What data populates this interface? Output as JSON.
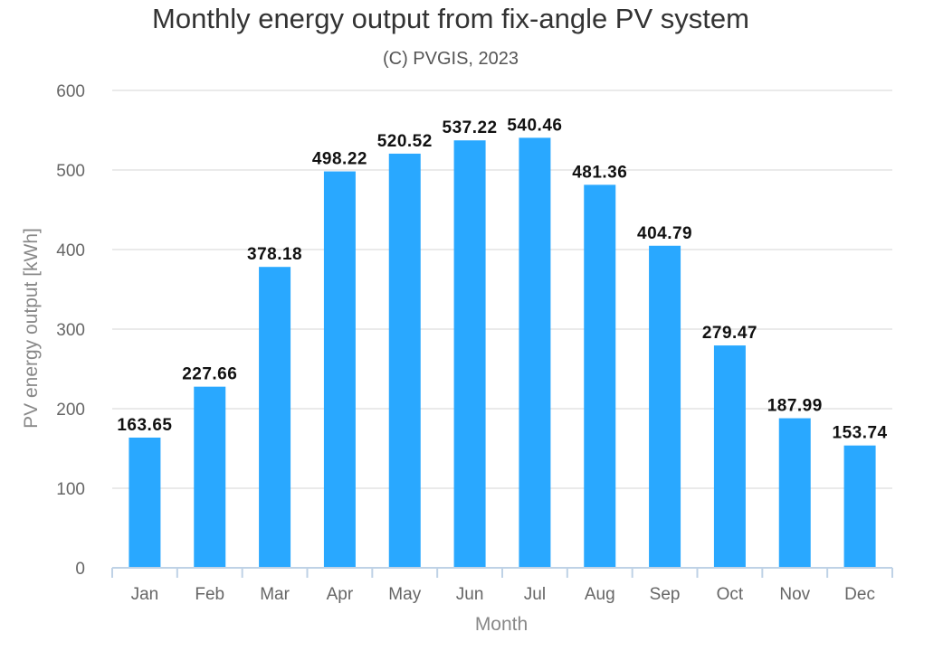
{
  "chart_data": {
    "type": "bar",
    "title": "Monthly energy output from fix-angle PV system",
    "subtitle": "(C) PVGIS, 2023",
    "xlabel": "Month",
    "ylabel": "PV energy output [kWh]",
    "categories": [
      "Jan",
      "Feb",
      "Mar",
      "Apr",
      "May",
      "Jun",
      "Jul",
      "Aug",
      "Sep",
      "Oct",
      "Nov",
      "Dec"
    ],
    "values": [
      163.65,
      227.66,
      378.18,
      498.22,
      520.52,
      537.22,
      540.46,
      481.36,
      404.79,
      279.47,
      187.99,
      153.74
    ],
    "value_labels": [
      "163.65",
      "227.66",
      "378.18",
      "498.22",
      "520.52",
      "537.22",
      "540.46",
      "481.36",
      "404.79",
      "279.47",
      "187.99",
      "153.74"
    ],
    "ylim": [
      0,
      600
    ],
    "yticks": [
      0,
      100,
      200,
      300,
      400,
      500,
      600
    ],
    "grid": true,
    "legend": "none",
    "bar_color": "#29a8ff"
  }
}
